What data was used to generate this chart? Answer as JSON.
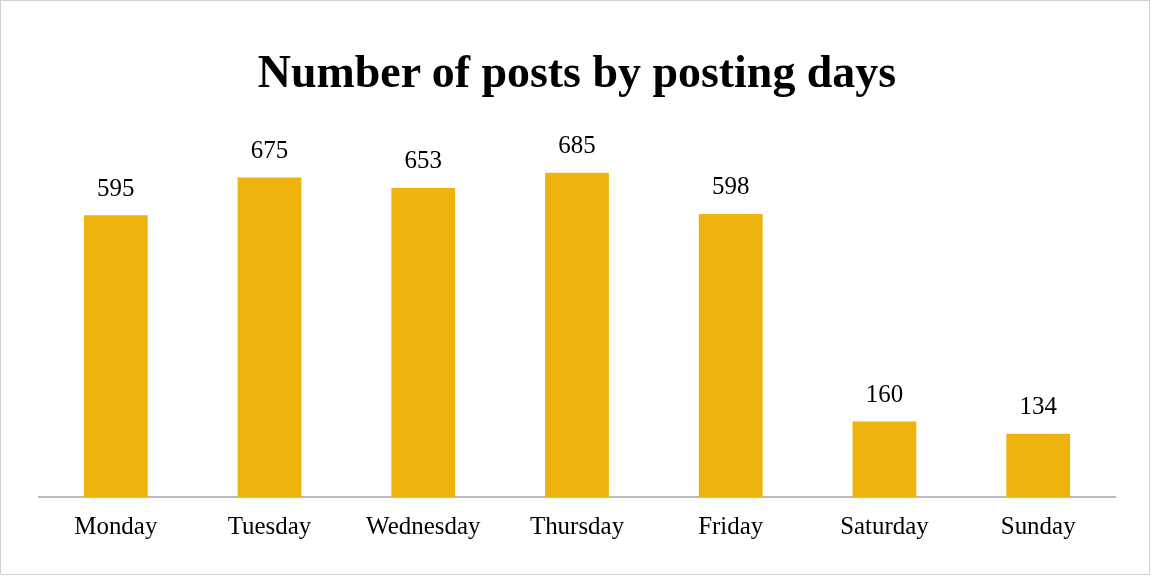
{
  "chart_data": {
    "type": "bar",
    "title": "Number of posts by posting days",
    "categories": [
      "Monday",
      "Tuesday",
      "Wednesday",
      "Thursday",
      "Friday",
      "Saturday",
      "Sunday"
    ],
    "values": [
      595,
      675,
      653,
      685,
      598,
      160,
      134
    ],
    "color": "#efb30e",
    "data_labels": true
  }
}
